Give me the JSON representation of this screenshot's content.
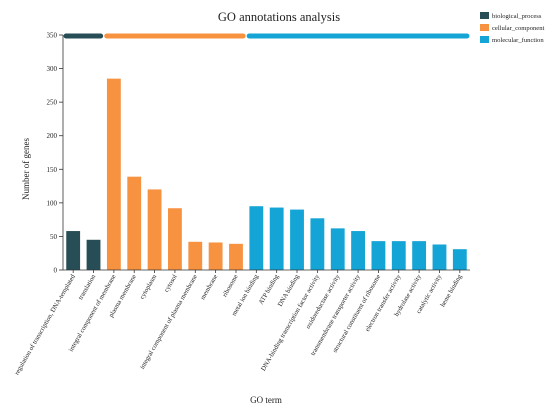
{
  "chart_data": {
    "type": "bar",
    "title": "GO annotations analysis",
    "xlabel": "GO term",
    "ylabel": "Number of genes",
    "ylim": [
      0,
      350
    ],
    "yticks": [
      0,
      50,
      100,
      150,
      200,
      250,
      300,
      350
    ],
    "grid": false,
    "legend_position": "top-right",
    "groups": [
      {
        "name": "biological_process",
        "color": "#274d57",
        "start": 0,
        "end": 1
      },
      {
        "name": "cellular_component",
        "color": "#f79240",
        "start": 2,
        "end": 8
      },
      {
        "name": "molecular_function",
        "color": "#14a5d6",
        "start": 9,
        "end": 19
      }
    ],
    "categories": [
      "regulation of transcription, DNA-templated",
      "translation",
      "integral component of membrane",
      "plasma membrane",
      "cytoplasm",
      "cytosol",
      "integral component of plasma membrane",
      "membrane",
      "ribosome",
      "metal ion binding",
      "ATP binding",
      "DNA binding",
      "DNA-binding transcription factor activity",
      "oxidoreductase activity",
      "transmembrane transporter activity",
      "structural constituent of ribosome",
      "electron transfer activity",
      "hydrolase activity",
      "catalytic activity",
      "heme binding"
    ],
    "values": [
      58,
      45,
      285,
      139,
      120,
      92,
      42,
      41,
      39,
      95,
      93,
      90,
      77,
      62,
      58,
      43,
      43,
      43,
      38,
      31
    ],
    "series_group": [
      "biological_process",
      "biological_process",
      "cellular_component",
      "cellular_component",
      "cellular_component",
      "cellular_component",
      "cellular_component",
      "cellular_component",
      "cellular_component",
      "molecular_function",
      "molecular_function",
      "molecular_function",
      "molecular_function",
      "molecular_function",
      "molecular_function",
      "molecular_function",
      "molecular_function",
      "molecular_function",
      "molecular_function",
      "molecular_function"
    ]
  }
}
